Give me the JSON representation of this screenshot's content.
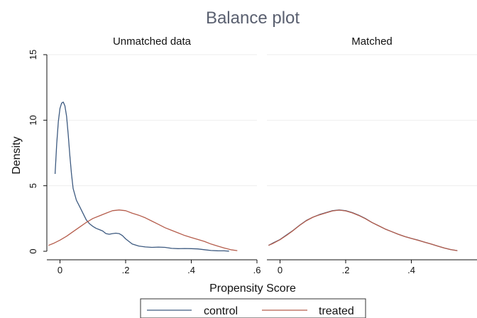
{
  "chart_data": {
    "type": "line",
    "title": "Balance plot",
    "xlabel": "Propensity Score",
    "ylabel": "Density",
    "x_ticks": [
      "0",
      ".2",
      ".4",
      ".6"
    ],
    "y_ticks": [
      "0",
      "5",
      "10",
      "15"
    ],
    "xlim": [
      -0.04,
      0.6
    ],
    "ylim": [
      0,
      15
    ],
    "grid": true,
    "legend": "bottom",
    "colors": {
      "control": "#3d5a80",
      "treated": "#b55d4c"
    },
    "panels": [
      {
        "title": "Unmatched data",
        "series": [
          {
            "name": "control",
            "points": [
              [
                -0.015,
                5.9
              ],
              [
                -0.01,
                8.2
              ],
              [
                -0.005,
                9.9
              ],
              [
                0,
                10.9
              ],
              [
                0.005,
                11.3
              ],
              [
                0.01,
                11.38
              ],
              [
                0.015,
                11.1
              ],
              [
                0.02,
                10.3
              ],
              [
                0.025,
                8.9
              ],
              [
                0.03,
                7.3
              ],
              [
                0.035,
                5.9
              ],
              [
                0.04,
                4.8
              ],
              [
                0.05,
                3.9
              ],
              [
                0.06,
                3.4
              ],
              [
                0.07,
                2.9
              ],
              [
                0.08,
                2.4
              ],
              [
                0.09,
                2.1
              ],
              [
                0.1,
                1.9
              ],
              [
                0.11,
                1.75
              ],
              [
                0.12,
                1.65
              ],
              [
                0.13,
                1.55
              ],
              [
                0.14,
                1.35
              ],
              [
                0.15,
                1.3
              ],
              [
                0.16,
                1.35
              ],
              [
                0.17,
                1.38
              ],
              [
                0.18,
                1.35
              ],
              [
                0.19,
                1.2
              ],
              [
                0.2,
                0.95
              ],
              [
                0.21,
                0.75
              ],
              [
                0.22,
                0.55
              ],
              [
                0.24,
                0.4
              ],
              [
                0.26,
                0.33
              ],
              [
                0.28,
                0.3
              ],
              [
                0.3,
                0.32
              ],
              [
                0.32,
                0.3
              ],
              [
                0.34,
                0.22
              ],
              [
                0.36,
                0.2
              ],
              [
                0.38,
                0.21
              ],
              [
                0.4,
                0.2
              ],
              [
                0.42,
                0.18
              ],
              [
                0.44,
                0.12
              ],
              [
                0.46,
                0.06
              ],
              [
                0.48,
                0.04
              ],
              [
                0.5,
                0.03
              ],
              [
                0.515,
                0.01
              ]
            ]
          },
          {
            "name": "treated",
            "points": [
              [
                -0.035,
                0.45
              ],
              [
                -0.02,
                0.6
              ],
              [
                0,
                0.85
              ],
              [
                0.02,
                1.15
              ],
              [
                0.04,
                1.5
              ],
              [
                0.06,
                1.85
              ],
              [
                0.08,
                2.2
              ],
              [
                0.1,
                2.5
              ],
              [
                0.12,
                2.7
              ],
              [
                0.14,
                2.9
              ],
              [
                0.16,
                3.1
              ],
              [
                0.18,
                3.15
              ],
              [
                0.2,
                3.1
              ],
              [
                0.22,
                2.9
              ],
              [
                0.24,
                2.75
              ],
              [
                0.26,
                2.55
              ],
              [
                0.28,
                2.3
              ],
              [
                0.3,
                2.05
              ],
              [
                0.32,
                1.8
              ],
              [
                0.34,
                1.6
              ],
              [
                0.36,
                1.4
              ],
              [
                0.38,
                1.2
              ],
              [
                0.4,
                1.05
              ],
              [
                0.42,
                0.9
              ],
              [
                0.44,
                0.75
              ],
              [
                0.46,
                0.55
              ],
              [
                0.48,
                0.4
              ],
              [
                0.5,
                0.25
              ],
              [
                0.52,
                0.12
              ],
              [
                0.54,
                0.05
              ]
            ]
          }
        ]
      },
      {
        "title": "Matched",
        "series": [
          {
            "name": "control",
            "points": [
              [
                -0.035,
                0.45
              ],
              [
                -0.02,
                0.65
              ],
              [
                0,
                0.9
              ],
              [
                0.02,
                1.25
              ],
              [
                0.04,
                1.6
              ],
              [
                0.06,
                2.0
              ],
              [
                0.08,
                2.35
              ],
              [
                0.1,
                2.6
              ],
              [
                0.12,
                2.8
              ],
              [
                0.14,
                2.95
              ],
              [
                0.16,
                3.1
              ],
              [
                0.18,
                3.15
              ],
              [
                0.2,
                3.1
              ],
              [
                0.22,
                2.95
              ],
              [
                0.24,
                2.75
              ],
              [
                0.26,
                2.5
              ],
              [
                0.28,
                2.2
              ],
              [
                0.3,
                1.95
              ],
              [
                0.32,
                1.7
              ],
              [
                0.34,
                1.5
              ],
              [
                0.36,
                1.3
              ],
              [
                0.38,
                1.12
              ],
              [
                0.4,
                0.98
              ],
              [
                0.42,
                0.85
              ],
              [
                0.44,
                0.7
              ],
              [
                0.46,
                0.55
              ],
              [
                0.48,
                0.4
              ],
              [
                0.5,
                0.25
              ],
              [
                0.52,
                0.13
              ],
              [
                0.54,
                0.05
              ]
            ]
          },
          {
            "name": "treated",
            "points": [
              [
                -0.035,
                0.45
              ],
              [
                -0.02,
                0.62
              ],
              [
                0,
                0.88
              ],
              [
                0.02,
                1.22
              ],
              [
                0.04,
                1.58
              ],
              [
                0.06,
                1.98
              ],
              [
                0.08,
                2.33
              ],
              [
                0.1,
                2.6
              ],
              [
                0.12,
                2.78
              ],
              [
                0.14,
                2.93
              ],
              [
                0.16,
                3.08
              ],
              [
                0.18,
                3.14
              ],
              [
                0.2,
                3.08
              ],
              [
                0.22,
                2.93
              ],
              [
                0.24,
                2.73
              ],
              [
                0.26,
                2.48
              ],
              [
                0.28,
                2.2
              ],
              [
                0.3,
                1.95
              ],
              [
                0.32,
                1.7
              ],
              [
                0.34,
                1.5
              ],
              [
                0.36,
                1.3
              ],
              [
                0.38,
                1.12
              ],
              [
                0.4,
                0.98
              ],
              [
                0.42,
                0.84
              ],
              [
                0.44,
                0.7
              ],
              [
                0.46,
                0.55
              ],
              [
                0.48,
                0.4
              ],
              [
                0.5,
                0.25
              ],
              [
                0.52,
                0.13
              ],
              [
                0.54,
                0.05
              ]
            ]
          }
        ]
      }
    ],
    "legend_entries": [
      "control",
      "treated"
    ]
  }
}
